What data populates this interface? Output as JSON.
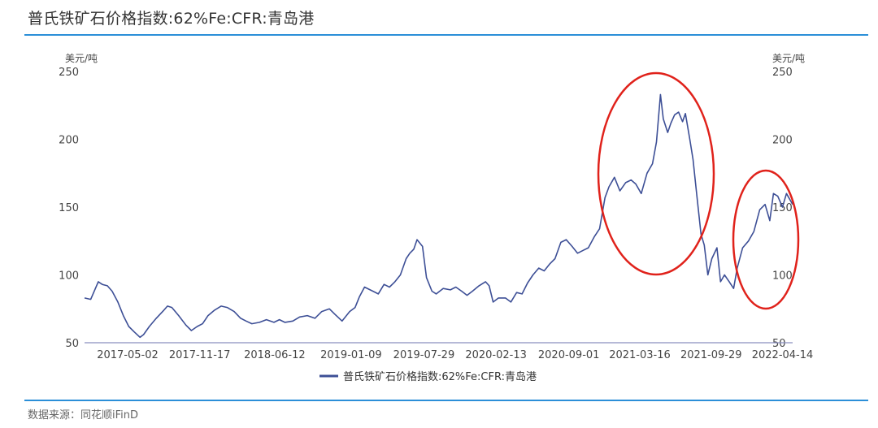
{
  "title": "普氏铁矿石价格指数:62%Fe:CFR:青岛港",
  "source": "数据来源：同花顺iFinD",
  "chart_data": {
    "type": "line",
    "title": "普氏铁矿石价格指数:62%Fe:CFR:青岛港",
    "y_unit_left": "美元/吨",
    "y_unit_right": "美元/吨",
    "ylim": [
      50,
      250
    ],
    "yticks": [
      50,
      100,
      150,
      200,
      250
    ],
    "x_range": [
      "2017-01-03",
      "2022-05-12"
    ],
    "xticks": [
      "2017-05-02",
      "2017-11-17",
      "2018-06-12",
      "2019-01-09",
      "2019-07-29",
      "2020-02-13",
      "2020-09-01",
      "2021-03-16",
      "2021-09-29",
      "2022-04-14"
    ],
    "grid": false,
    "legend": "bottom-center",
    "series": [
      {
        "name": "普氏铁矿石价格指数:62%Fe:CFR:青岛港",
        "color": "#3d4f96",
        "x": [
          "2017-01-03",
          "2017-01-20",
          "2017-02-10",
          "2017-02-21",
          "2017-03-07",
          "2017-03-20",
          "2017-04-05",
          "2017-04-20",
          "2017-05-05",
          "2017-05-20",
          "2017-06-05",
          "2017-06-15",
          "2017-07-01",
          "2017-07-20",
          "2017-08-10",
          "2017-08-20",
          "2017-09-01",
          "2017-09-20",
          "2017-10-10",
          "2017-10-25",
          "2017-11-10",
          "2017-11-25",
          "2017-12-10",
          "2017-12-28",
          "2018-01-15",
          "2018-02-01",
          "2018-02-20",
          "2018-03-10",
          "2018-03-25",
          "2018-04-10",
          "2018-05-01",
          "2018-05-20",
          "2018-06-10",
          "2018-06-25",
          "2018-07-10",
          "2018-08-01",
          "2018-08-20",
          "2018-09-10",
          "2018-10-01",
          "2018-10-20",
          "2018-11-10",
          "2018-11-25",
          "2018-12-15",
          "2019-01-05",
          "2019-01-20",
          "2019-02-01",
          "2019-02-15",
          "2019-03-10",
          "2019-03-25",
          "2019-04-10",
          "2019-04-25",
          "2019-05-10",
          "2019-05-25",
          "2019-06-10",
          "2019-06-20",
          "2019-07-01",
          "2019-07-10",
          "2019-07-25",
          "2019-08-05",
          "2019-08-20",
          "2019-09-01",
          "2019-09-20",
          "2019-10-10",
          "2019-10-25",
          "2019-11-10",
          "2019-11-25",
          "2019-12-10",
          "2019-12-28",
          "2020-01-15",
          "2020-01-25",
          "2020-02-05",
          "2020-02-20",
          "2020-03-10",
          "2020-03-25",
          "2020-04-10",
          "2020-04-25",
          "2020-05-10",
          "2020-05-25",
          "2020-06-10",
          "2020-06-25",
          "2020-07-10",
          "2020-07-25",
          "2020-08-10",
          "2020-08-25",
          "2020-09-10",
          "2020-09-25",
          "2020-10-10",
          "2020-10-25",
          "2020-11-10",
          "2020-11-25",
          "2020-12-10",
          "2020-12-21",
          "2021-01-05",
          "2021-01-20",
          "2021-02-05",
          "2021-02-20",
          "2021-03-05",
          "2021-03-20",
          "2021-04-05",
          "2021-04-20",
          "2021-05-01",
          "2021-05-12",
          "2021-05-20",
          "2021-06-01",
          "2021-06-10",
          "2021-06-20",
          "2021-07-01",
          "2021-07-12",
          "2021-07-20",
          "2021-08-01",
          "2021-08-10",
          "2021-08-20",
          "2021-09-01",
          "2021-09-10",
          "2021-09-20",
          "2021-10-01",
          "2021-10-15",
          "2021-10-25",
          "2021-11-05",
          "2021-11-18",
          "2021-11-30",
          "2021-12-10",
          "2021-12-25",
          "2022-01-10",
          "2022-01-25",
          "2022-02-10",
          "2022-02-25",
          "2022-03-10",
          "2022-03-20",
          "2022-04-01",
          "2022-04-14",
          "2022-04-25",
          "2022-05-12"
        ],
        "y": [
          83,
          82,
          95,
          93,
          92,
          88,
          80,
          70,
          62,
          58,
          54,
          56,
          62,
          68,
          74,
          77,
          76,
          70,
          63,
          59,
          62,
          64,
          70,
          74,
          77,
          76,
          73,
          68,
          66,
          64,
          65,
          67,
          65,
          67,
          65,
          66,
          69,
          70,
          68,
          73,
          75,
          71,
          66,
          73,
          76,
          84,
          91,
          88,
          86,
          93,
          91,
          95,
          100,
          112,
          116,
          119,
          126,
          121,
          98,
          88,
          86,
          90,
          89,
          91,
          88,
          85,
          88,
          92,
          95,
          92,
          80,
          83,
          83,
          80,
          87,
          86,
          94,
          100,
          105,
          103,
          108,
          112,
          124,
          126,
          121,
          116,
          118,
          120,
          128,
          134,
          157,
          165,
          172,
          162,
          168,
          170,
          167,
          160,
          175,
          182,
          198,
          233,
          215,
          205,
          212,
          218,
          220,
          213,
          219,
          200,
          185,
          160,
          130,
          122,
          100,
          112,
          120,
          95,
          100,
          95,
          90,
          105,
          120,
          125,
          132,
          148,
          152,
          140,
          160,
          158,
          150,
          160,
          152
        ]
      }
    ]
  }
}
